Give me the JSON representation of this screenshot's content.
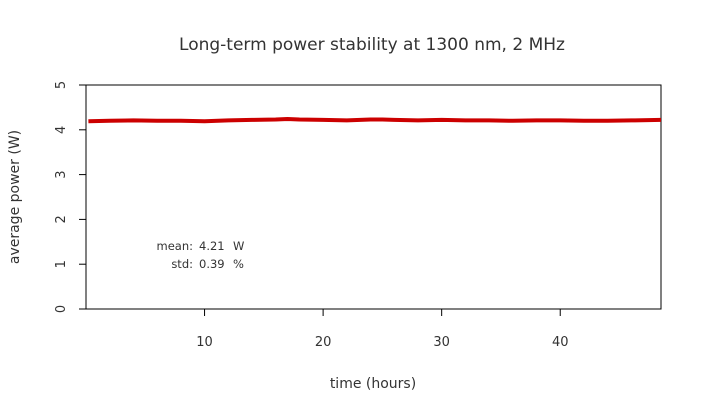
{
  "chart_data": {
    "type": "line",
    "title": "Long-term power stability at 1300 nm, 2 MHz",
    "xlabel": "time (hours)",
    "ylabel": "average power (W)",
    "xlim": [
      0,
      48.5
    ],
    "ylim": [
      0,
      5
    ],
    "x_ticks": [
      10,
      20,
      30,
      40
    ],
    "y_ticks": [
      0,
      1,
      2,
      3,
      4,
      5
    ],
    "grid": false,
    "legend": "none",
    "series": [
      {
        "color": "#cc0000",
        "x": [
          0.2,
          2,
          4,
          6,
          8,
          10,
          12,
          14,
          16,
          17,
          18,
          20,
          22,
          24,
          25,
          26,
          28,
          30,
          32,
          34,
          36,
          38,
          40,
          42,
          44,
          46,
          48.5
        ],
        "y": [
          4.19,
          4.2,
          4.21,
          4.2,
          4.2,
          4.19,
          4.21,
          4.22,
          4.23,
          4.24,
          4.23,
          4.22,
          4.21,
          4.23,
          4.23,
          4.22,
          4.21,
          4.22,
          4.21,
          4.21,
          4.2,
          4.21,
          4.21,
          4.2,
          4.2,
          4.21,
          4.22
        ]
      }
    ],
    "annotations": {
      "mean_label": "mean:",
      "mean_value": "4.21",
      "mean_unit": "W",
      "std_label": "std:",
      "std_value": "0.39",
      "std_unit": "%"
    }
  }
}
